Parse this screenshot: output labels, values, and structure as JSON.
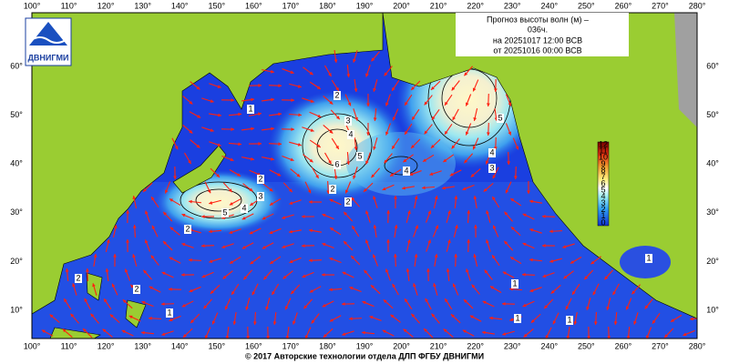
{
  "header": {
    "logo": "ДВНИГМИ",
    "title": [
      "Прогноз высоты волн (м) –",
      "036ч.",
      "на 20251017 12:00 ВСВ"
    ],
    "issued": "от 20251016 00:00 ВСВ"
  },
  "lon_ticks": [
    "100°",
    "110°",
    "120°",
    "130°",
    "140°",
    "150°",
    "160°",
    "170°",
    "180°",
    "190°",
    "200°",
    "210°",
    "220°",
    "230°",
    "240°",
    "250°",
    "260°",
    "270°",
    "280°"
  ],
  "lat_ticks": [
    "10°",
    "20°",
    "30°",
    "40°",
    "50°",
    "60°"
  ],
  "colorbar": [
    "0",
    "1",
    "2",
    "3",
    "4",
    "5",
    "6",
    "7",
    "8",
    "9",
    "10",
    "11",
    "12"
  ],
  "contour_labels": [
    "5",
    "4",
    "3",
    "2",
    "6",
    "5",
    "4",
    "3",
    "2",
    "4",
    "5",
    "4",
    "3",
    "2",
    "1",
    "2",
    "2",
    "2",
    "1",
    "1",
    "1",
    "1",
    "1",
    "2"
  ],
  "footer": "© 2017 Авторские технологии отдела ДЛП ФГБУ ДВНИГМИ"
}
